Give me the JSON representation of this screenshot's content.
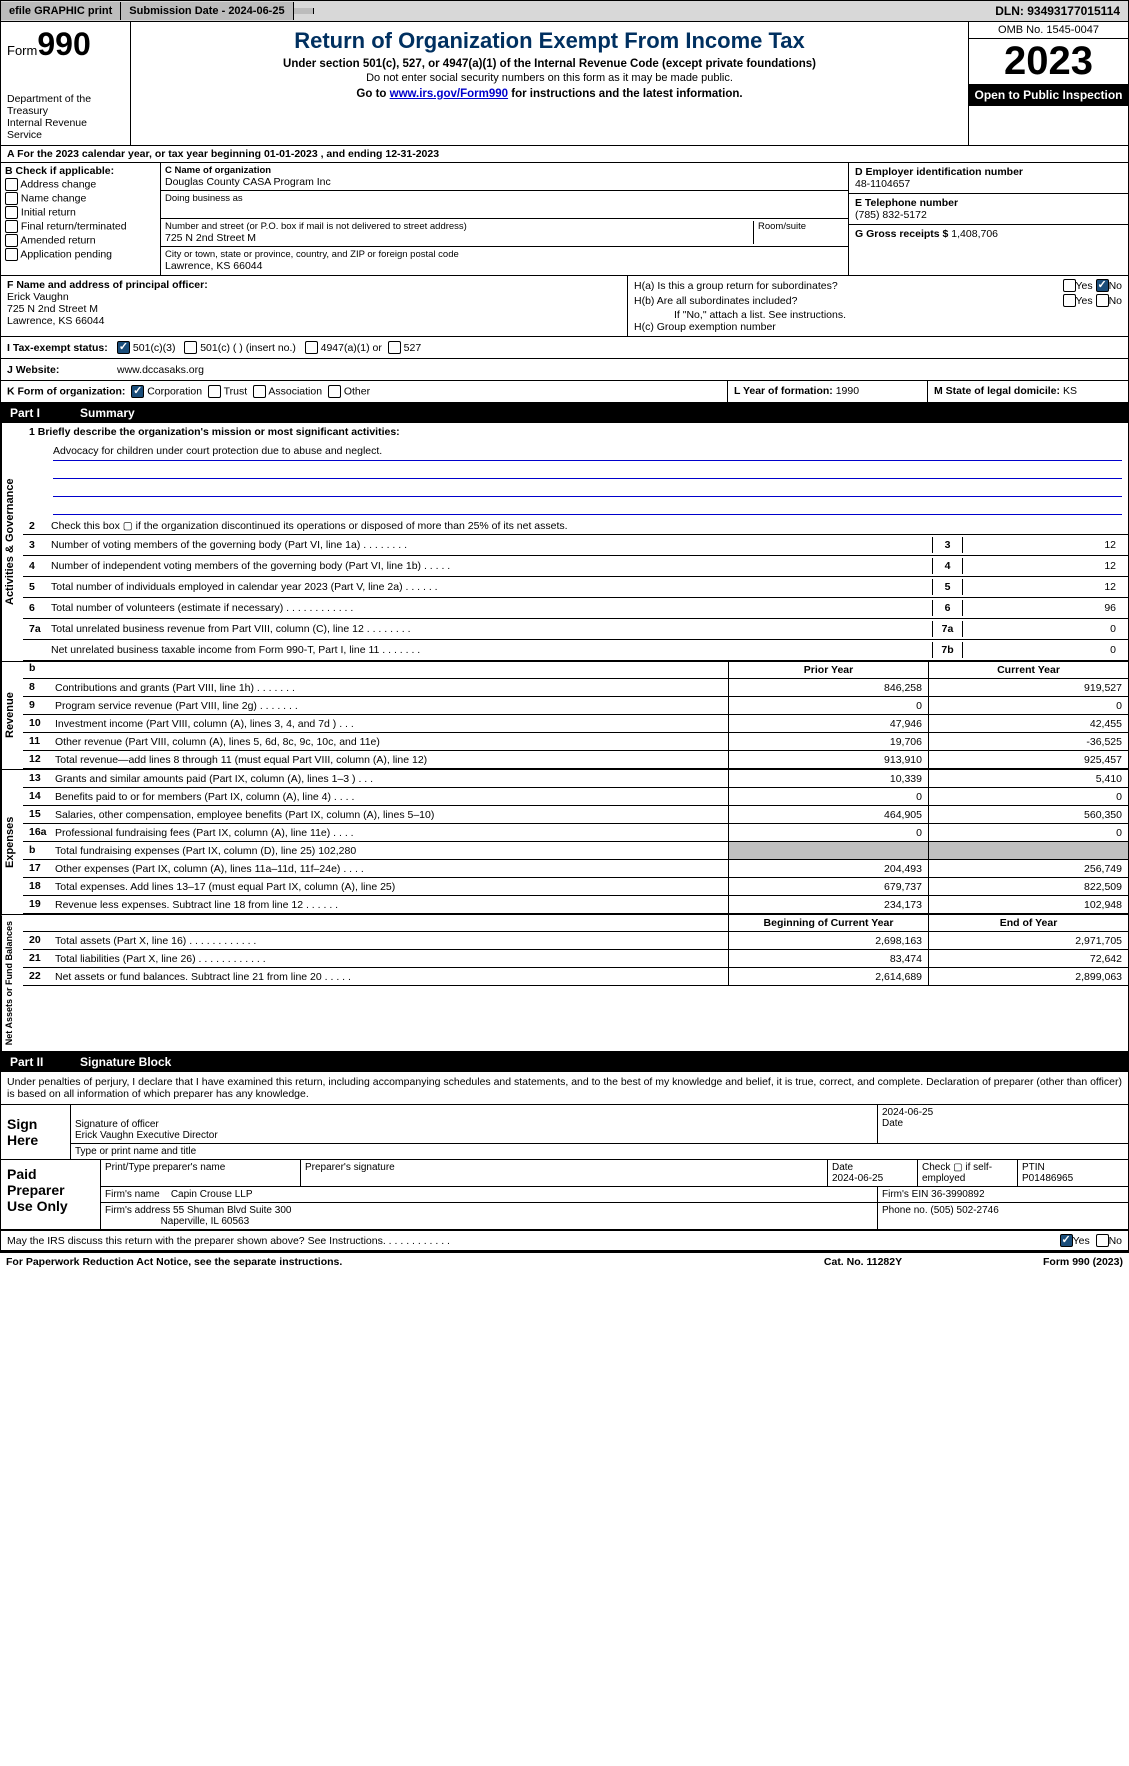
{
  "topbar": {
    "efile": "efile GRAPHIC print",
    "sub_label": "Submission Date - 2024-06-25",
    "dln": "DLN: 93493177015114"
  },
  "header": {
    "form_word": "Form",
    "form_num": "990",
    "title": "Return of Organization Exempt From Income Tax",
    "sub1": "Under section 501(c), 527, or 4947(a)(1) of the Internal Revenue Code (except private foundations)",
    "sub2": "Do not enter social security numbers on this form as it may be made public.",
    "sub3a": "Go to ",
    "sub3b": "www.irs.gov/Form990",
    "sub3c": " for instructions and the latest information.",
    "dept": "Department of the Treasury\nInternal Revenue Service",
    "omb": "OMB No. 1545-0047",
    "year": "2023",
    "open": "Open to Public Inspection"
  },
  "calyear": {
    "line": "For the 2023 calendar year, or tax year beginning 01-01-2023    , and ending 12-31-2023"
  },
  "boxB": {
    "lbl": "B Check if applicable:",
    "items": [
      "Address change",
      "Name change",
      "Initial return",
      "Final return/terminated",
      "Amended return",
      "Application pending"
    ]
  },
  "boxC": {
    "name_lbl": "C Name of organization",
    "name": "Douglas County CASA Program Inc",
    "dba_lbl": "Doing business as",
    "dba": "",
    "addr_lbl": "Number and street (or P.O. box if mail is not delivered to street address)",
    "room_lbl": "Room/suite",
    "addr": "725 N 2nd Street M",
    "city_lbl": "City or town, state or province, country, and ZIP or foreign postal code",
    "city": "Lawrence, KS  66044"
  },
  "boxD": {
    "lbl": "D Employer identification number",
    "val": "48-1104657"
  },
  "boxE": {
    "lbl": "E Telephone number",
    "val": "(785) 832-5172"
  },
  "boxG": {
    "lbl": "G Gross receipts $ ",
    "val": "1,408,706"
  },
  "boxF": {
    "lbl": "F  Name and address of principal officer:",
    "name": "Erick Vaughn",
    "l1": "725 N 2nd Street M",
    "l2": "Lawrence, KS  66044"
  },
  "boxH": {
    "ha": "H(a)  Is this a group return for subordinates?",
    "hb": "H(b)  Are all subordinates included?",
    "hnote": "If \"No,\" attach a list. See instructions.",
    "hc": "H(c)  Group exemption number",
    "yes": "Yes",
    "no": "No"
  },
  "boxI": {
    "lbl": "I   Tax-exempt status:",
    "o1": "501(c)(3)",
    "o2": "501(c) (  ) (insert no.)",
    "o3": "4947(a)(1) or",
    "o4": "527"
  },
  "boxJ": {
    "lbl": "J   Website:",
    "val": "www.dccasaks.org"
  },
  "boxK": {
    "lbl": "K Form of organization:",
    "o1": "Corporation",
    "o2": "Trust",
    "o3": "Association",
    "o4": "Other"
  },
  "boxL": {
    "lbl": "L Year of formation: ",
    "val": "1990"
  },
  "boxM": {
    "lbl": "M State of legal domicile: ",
    "val": "KS"
  },
  "part1": {
    "num": "Part I",
    "title": "Summary"
  },
  "mission": {
    "lbl": "1   Briefly describe the organization's mission or most significant activities:",
    "text": "Advocacy for children under court protection due to abuse and neglect."
  },
  "gov": {
    "tab": "Activities & Governance",
    "lines": [
      {
        "n": "2",
        "d": "Check this box ▢ if the organization discontinued its operations or disposed of more than 25% of its net assets."
      },
      {
        "n": "3",
        "d": "Number of voting members of the governing body (Part VI, line 1a)   .    .    .    .    .    .    .    .",
        "nc": "3",
        "v": "12"
      },
      {
        "n": "4",
        "d": "Number of independent voting members of the governing body (Part VI, line 1b)    .    .    .    .    .",
        "nc": "4",
        "v": "12"
      },
      {
        "n": "5",
        "d": "Total number of individuals employed in calendar year 2023 (Part V, line 2a)   .    .    .    .    .    .",
        "nc": "5",
        "v": "12"
      },
      {
        "n": "6",
        "d": "Total number of volunteers (estimate if necessary)    .    .    .    .    .    .    .    .    .    .    .    .",
        "nc": "6",
        "v": "96"
      },
      {
        "n": "7a",
        "d": "Total unrelated business revenue from Part VIII, column (C), line 12   .    .    .    .    .    .    .    .",
        "nc": "7a",
        "v": "0"
      },
      {
        "n": "",
        "d": "Net unrelated business taxable income from Form 990-T, Part I, line 11   .    .    .    .    .    .    .",
        "nc": "7b",
        "v": "0"
      }
    ]
  },
  "rev": {
    "tab": "Revenue",
    "h1": "Prior Year",
    "h2": "Current Year",
    "lines": [
      {
        "n": "8",
        "d": "Contributions and grants (Part VIII, line 1h)   .    .    .    .    .    .    .",
        "c1": "846,258",
        "c2": "919,527"
      },
      {
        "n": "9",
        "d": "Program service revenue (Part VIII, line 2g)    .    .    .    .    .    .    .",
        "c1": "0",
        "c2": "0"
      },
      {
        "n": "10",
        "d": "Investment income (Part VIII, column (A), lines 3, 4, and 7d )    .    .    .",
        "c1": "47,946",
        "c2": "42,455"
      },
      {
        "n": "11",
        "d": "Other revenue (Part VIII, column (A), lines 5, 6d, 8c, 9c, 10c, and 11e)",
        "c1": "19,706",
        "c2": "-36,525"
      },
      {
        "n": "12",
        "d": "Total revenue—add lines 8 through 11 (must equal Part VIII, column (A), line 12)",
        "c1": "913,910",
        "c2": "925,457"
      }
    ]
  },
  "exp": {
    "tab": "Expenses",
    "lines": [
      {
        "n": "13",
        "d": "Grants and similar amounts paid (Part IX, column (A), lines 1–3 )   .    .    .",
        "c1": "10,339",
        "c2": "5,410"
      },
      {
        "n": "14",
        "d": "Benefits paid to or for members (Part IX, column (A), line 4)   .    .    .    .",
        "c1": "0",
        "c2": "0"
      },
      {
        "n": "15",
        "d": "Salaries, other compensation, employee benefits (Part IX, column (A), lines 5–10)",
        "c1": "464,905",
        "c2": "560,350"
      },
      {
        "n": "16a",
        "d": "Professional fundraising fees (Part IX, column (A), line 11e)   .    .    .    .",
        "c1": "0",
        "c2": "0"
      },
      {
        "n": "b",
        "d": "Total fundraising expenses (Part IX, column (D), line 25) 102,280",
        "grey": true
      },
      {
        "n": "17",
        "d": "Other expenses (Part IX, column (A), lines 11a–11d, 11f–24e)   .    .    .    .",
        "c1": "204,493",
        "c2": "256,749"
      },
      {
        "n": "18",
        "d": "Total expenses. Add lines 13–17 (must equal Part IX, column (A), line 25)",
        "c1": "679,737",
        "c2": "822,509"
      },
      {
        "n": "19",
        "d": "Revenue less expenses. Subtract line 18 from line 12   .    .    .    .    .    .",
        "c1": "234,173",
        "c2": "102,948"
      }
    ]
  },
  "net": {
    "tab": "Net Assets or Fund Balances",
    "h1": "Beginning of Current Year",
    "h2": "End of Year",
    "lines": [
      {
        "n": "20",
        "d": "Total assets (Part X, line 16)   .    .    .    .    .    .    .    .    .    .    .    .",
        "c1": "2,698,163",
        "c2": "2,971,705"
      },
      {
        "n": "21",
        "d": "Total liabilities (Part X, line 26)   .    .    .    .    .    .    .    .    .    .    .    .",
        "c1": "83,474",
        "c2": "72,642"
      },
      {
        "n": "22",
        "d": "Net assets or fund balances. Subtract line 21 from line 20   .    .    .    .    .",
        "c1": "2,614,689",
        "c2": "2,899,063"
      }
    ]
  },
  "part2": {
    "num": "Part II",
    "title": "Signature Block"
  },
  "sig": {
    "declare": "Under penalties of perjury, I declare that I have examined this return, including accompanying schedules and statements, and to the best of my knowledge and belief, it is true, correct, and complete. Declaration of preparer (other than officer) is based on all information of which preparer has any knowledge.",
    "sign_here": "Sign Here",
    "sig_officer_lbl": "Signature of officer",
    "date_lbl": "Date",
    "date_val": "2024-06-25",
    "officer_name": "Erick Vaughn  Executive Director",
    "name_title_lbl": "Type or print name and title",
    "paid": "Paid Preparer Use Only",
    "p_name_lbl": "Print/Type preparer's name",
    "p_sig_lbl": "Preparer's signature",
    "p_date_lbl": "Date",
    "p_date": "2024-06-25",
    "p_check_lbl": "Check ▢ if self-employed",
    "ptin_lbl": "PTIN",
    "ptin": "P01486965",
    "firm_name_lbl": "Firm's name",
    "firm_name": "Capin Crouse LLP",
    "firm_ein_lbl": "Firm's EIN",
    "firm_ein": "36-3990892",
    "firm_addr_lbl": "Firm's address",
    "firm_addr1": "55 Shuman Blvd Suite 300",
    "firm_addr2": "Naperville, IL  60563",
    "phone_lbl": "Phone no.",
    "phone": "(505) 502-2746"
  },
  "irs_discuss": {
    "q": "May the IRS discuss this return with the preparer shown above? See Instructions.    .    .    .    .    .    .    .    .    .    .    .",
    "yes": "Yes",
    "no": "No"
  },
  "footer": {
    "pra": "For Paperwork Reduction Act Notice, see the separate instructions.",
    "cat": "Cat. No. 11282Y",
    "form": "Form 990 (2023)"
  }
}
